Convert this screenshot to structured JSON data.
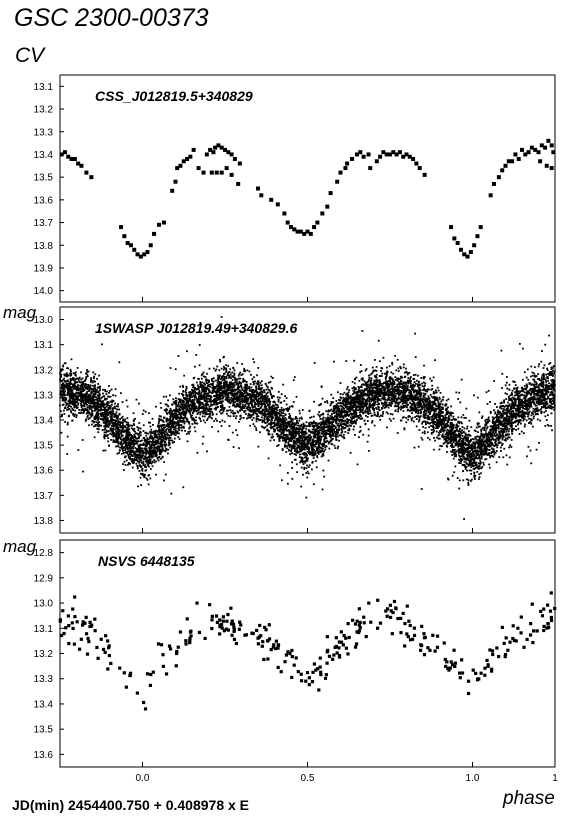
{
  "figure": {
    "title": "GSC 2300-00373",
    "subtitle": "CV",
    "ylabel": "mag",
    "xlabel": "phase",
    "footer": "JD(min) 2454400.750 + 0.408978 x E",
    "x_ticks": [
      {
        "v": 0.0,
        "label": "0.0"
      },
      {
        "v": 0.5,
        "label": "0.5"
      },
      {
        "v": 1.0,
        "label": "1.0"
      },
      {
        "v": 1.25,
        "label": "1"
      }
    ]
  },
  "chart_data": [
    {
      "type": "scatter",
      "title": "CSS_J012819.5+340829",
      "xlim": [
        -0.25,
        1.25
      ],
      "ylim": [
        14.05,
        13.05
      ],
      "y_inverted": true,
      "y_ticks": [
        "13.1",
        "13.2",
        "13.3",
        "13.4",
        "13.5",
        "13.6",
        "13.7",
        "13.8",
        "13.9",
        "14.0"
      ],
      "series": [
        {
          "marker": "square",
          "points": [
            [
              -0.245,
              13.4
            ],
            [
              -0.235,
              13.39
            ],
            [
              -0.225,
              13.41
            ],
            [
              -0.215,
              13.42
            ],
            [
              -0.205,
              13.42
            ],
            [
              -0.195,
              13.44
            ],
            [
              -0.185,
              13.45
            ],
            [
              -0.17,
              13.48
            ],
            [
              -0.155,
              13.5
            ],
            [
              -0.065,
              13.72
            ],
            [
              -0.055,
              13.76
            ],
            [
              -0.045,
              13.79
            ],
            [
              -0.035,
              13.8
            ],
            [
              -0.025,
              13.82
            ],
            [
              -0.015,
              13.84
            ],
            [
              -0.005,
              13.85
            ],
            [
              0.005,
              13.84
            ],
            [
              0.015,
              13.83
            ],
            [
              0.025,
              13.8
            ],
            [
              0.035,
              13.75
            ],
            [
              0.05,
              13.71
            ],
            [
              0.065,
              13.7
            ],
            [
              0.09,
              13.56
            ],
            [
              0.1,
              13.52
            ],
            [
              0.105,
              13.46
            ],
            [
              0.115,
              13.45
            ],
            [
              0.125,
              13.43
            ],
            [
              0.135,
              13.42
            ],
            [
              0.145,
              13.41
            ],
            [
              0.155,
              13.38
            ],
            [
              0.17,
              13.46
            ],
            [
              0.185,
              13.48
            ],
            [
              0.195,
              13.4
            ],
            [
              0.205,
              13.38
            ],
            [
              0.215,
              13.39
            ],
            [
              0.22,
              13.37
            ],
            [
              0.23,
              13.36
            ],
            [
              0.24,
              13.37
            ],
            [
              0.25,
              13.38
            ],
            [
              0.26,
              13.39
            ],
            [
              0.27,
              13.4
            ],
            [
              0.28,
              13.42
            ],
            [
              0.295,
              13.44
            ],
            [
              0.21,
              13.48
            ],
            [
              0.225,
              13.48
            ],
            [
              0.24,
              13.48
            ],
            [
              0.255,
              13.46
            ],
            [
              0.27,
              13.49
            ],
            [
              0.29,
              13.53
            ],
            [
              0.35,
              13.55
            ],
            [
              0.36,
              13.58
            ],
            [
              0.39,
              13.6
            ],
            [
              0.41,
              13.62
            ],
            [
              0.43,
              13.66
            ],
            [
              0.44,
              13.7
            ],
            [
              0.45,
              13.72
            ],
            [
              0.46,
              13.73
            ],
            [
              0.47,
              13.74
            ],
            [
              0.48,
              13.74
            ],
            [
              0.49,
              13.75
            ],
            [
              0.5,
              13.74
            ],
            [
              0.51,
              13.75
            ],
            [
              0.52,
              13.72
            ],
            [
              0.53,
              13.7
            ],
            [
              0.545,
              13.66
            ],
            [
              0.56,
              13.63
            ],
            [
              0.57,
              13.57
            ],
            [
              0.59,
              13.52
            ],
            [
              0.6,
              13.48
            ],
            [
              0.615,
              13.46
            ],
            [
              0.62,
              13.44
            ],
            [
              0.635,
              13.42
            ],
            [
              0.65,
              13.4
            ],
            [
              0.66,
              13.39
            ],
            [
              0.67,
              13.41
            ],
            [
              0.685,
              13.4
            ],
            [
              0.69,
              13.46
            ],
            [
              0.71,
              13.43
            ],
            [
              0.72,
              13.41
            ],
            [
              0.73,
              13.39
            ],
            [
              0.74,
              13.4
            ],
            [
              0.75,
              13.4
            ],
            [
              0.76,
              13.39
            ],
            [
              0.77,
              13.4
            ],
            [
              0.78,
              13.39
            ],
            [
              0.79,
              13.41
            ],
            [
              0.8,
              13.4
            ],
            [
              0.81,
              13.41
            ],
            [
              0.82,
              13.42
            ],
            [
              0.83,
              13.44
            ],
            [
              0.84,
              13.46
            ],
            [
              0.855,
              13.49
            ],
            [
              0.935,
              13.72
            ],
            [
              0.945,
              13.77
            ],
            [
              0.955,
              13.79
            ],
            [
              0.965,
              13.82
            ],
            [
              0.975,
              13.84
            ],
            [
              0.985,
              13.85
            ],
            [
              0.995,
              13.83
            ],
            [
              1.005,
              13.8
            ],
            [
              1.015,
              13.76
            ],
            [
              1.025,
              13.72
            ],
            [
              1.055,
              13.58
            ],
            [
              1.065,
              13.53
            ],
            [
              1.08,
              13.5
            ],
            [
              1.09,
              13.47
            ],
            [
              1.1,
              13.45
            ],
            [
              1.11,
              13.43
            ],
            [
              1.12,
              13.43
            ],
            [
              1.13,
              13.4
            ],
            [
              1.14,
              13.42
            ],
            [
              1.15,
              13.38
            ],
            [
              1.16,
              13.4
            ],
            [
              1.17,
              13.39
            ],
            [
              1.18,
              13.37
            ],
            [
              1.19,
              13.38
            ],
            [
              1.2,
              13.39
            ],
            [
              1.21,
              13.36
            ],
            [
              1.22,
              13.37
            ],
            [
              1.23,
              13.34
            ],
            [
              1.24,
              13.36
            ],
            [
              1.245,
              13.39
            ],
            [
              1.205,
              13.43
            ],
            [
              1.225,
              13.45
            ],
            [
              1.24,
              13.46
            ]
          ]
        }
      ]
    },
    {
      "type": "scatter",
      "title": "1SWASP J012819.49+340829.6",
      "xlim": [
        -0.25,
        1.25
      ],
      "ylim": [
        13.85,
        12.95
      ],
      "y_inverted": true,
      "y_ticks": [
        "13.0",
        "13.1",
        "13.2",
        "13.3",
        "13.4",
        "13.5",
        "13.6",
        "13.7",
        "13.8"
      ],
      "series": [
        {
          "marker": "dot",
          "n_points": 9000,
          "mean_curve": [
            [
              -0.25,
              13.28
            ],
            [
              -0.2,
              13.3
            ],
            [
              -0.15,
              13.33
            ],
            [
              -0.1,
              13.39
            ],
            [
              -0.05,
              13.48
            ],
            [
              0.0,
              13.54
            ],
            [
              0.05,
              13.48
            ],
            [
              0.1,
              13.39
            ],
            [
              0.15,
              13.33
            ],
            [
              0.2,
              13.3
            ],
            [
              0.25,
              13.28
            ],
            [
              0.3,
              13.3
            ],
            [
              0.35,
              13.33
            ],
            [
              0.4,
              13.38
            ],
            [
              0.45,
              13.45
            ],
            [
              0.5,
              13.5
            ],
            [
              0.55,
              13.45
            ],
            [
              0.6,
              13.38
            ],
            [
              0.65,
              13.33
            ],
            [
              0.7,
              13.3
            ],
            [
              0.75,
              13.28
            ],
            [
              0.8,
              13.3
            ],
            [
              0.85,
              13.33
            ],
            [
              0.9,
              13.39
            ],
            [
              0.95,
              13.48
            ],
            [
              1.0,
              13.54
            ],
            [
              1.05,
              13.48
            ],
            [
              1.1,
              13.39
            ],
            [
              1.15,
              13.33
            ],
            [
              1.2,
              13.3
            ],
            [
              1.25,
              13.28
            ]
          ],
          "scatter_sigma_mag": 0.045
        }
      ]
    },
    {
      "type": "scatter",
      "title": "NSVS 6448135",
      "xlim": [
        -0.25,
        1.25
      ],
      "ylim": [
        13.65,
        12.75
      ],
      "y_inverted": true,
      "y_ticks": [
        "12.8",
        "12.9",
        "13.0",
        "13.1",
        "13.2",
        "13.3",
        "13.4",
        "13.5",
        "13.6"
      ],
      "series": [
        {
          "marker": "square",
          "n_points": 330,
          "mean_curve": [
            [
              -0.25,
              13.07
            ],
            [
              -0.2,
              13.1
            ],
            [
              -0.15,
              13.14
            ],
            [
              -0.1,
              13.2
            ],
            [
              -0.05,
              13.27
            ],
            [
              0.0,
              13.31
            ],
            [
              0.05,
              13.26
            ],
            [
              0.1,
              13.18
            ],
            [
              0.15,
              13.11
            ],
            [
              0.2,
              13.07
            ],
            [
              0.25,
              13.06
            ],
            [
              0.3,
              13.09
            ],
            [
              0.35,
              13.13
            ],
            [
              0.4,
              13.2
            ],
            [
              0.45,
              13.26
            ],
            [
              0.5,
              13.29
            ],
            [
              0.55,
              13.24
            ],
            [
              0.6,
              13.16
            ],
            [
              0.65,
              13.1
            ],
            [
              0.7,
              13.08
            ],
            [
              0.75,
              13.06
            ],
            [
              0.8,
              13.09
            ],
            [
              0.85,
              13.14
            ],
            [
              0.9,
              13.2
            ],
            [
              0.95,
              13.27
            ],
            [
              1.0,
              13.3
            ],
            [
              1.05,
              13.24
            ],
            [
              1.1,
              13.17
            ],
            [
              1.15,
              13.11
            ],
            [
              1.2,
              13.07
            ],
            [
              1.25,
              13.04
            ]
          ],
          "scatter_sigma_mag": 0.04
        }
      ]
    }
  ]
}
